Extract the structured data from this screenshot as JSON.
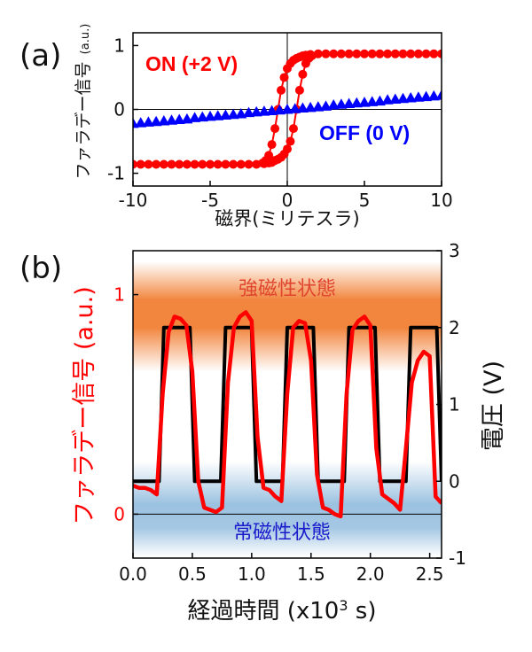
{
  "chart_data": [
    {
      "panel_label": "(a)",
      "type": "scatter",
      "xlabel": "磁界(ミリテスラ)",
      "ylabel": "ファラデー信号",
      "ylabel_unit": "(a.u.)",
      "xlim": [
        -10,
        10
      ],
      "ylim": [
        -1.2,
        1.2
      ],
      "x_ticks": [
        -10,
        -5,
        0,
        5,
        10
      ],
      "y_ticks": [
        -1,
        0,
        1
      ],
      "grid": false,
      "reference_lines": {
        "x": 0,
        "y": 0
      },
      "series": [
        {
          "name": "ON (+2 V)",
          "color": "#ff0000",
          "marker": "circle",
          "sweep_up": {
            "x": [
              -10,
              -9.5,
              -9,
              -8.5,
              -8,
              -7.5,
              -7,
              -6.5,
              -6,
              -5.5,
              -5,
              -4.5,
              -4,
              -3.5,
              -3,
              -2.5,
              -2,
              -1.5,
              -1.2,
              -1.0,
              -0.8,
              -0.6,
              -0.4,
              -0.2,
              0,
              0.2,
              0.4,
              0.6,
              0.8,
              1.0,
              1.2,
              1.4,
              1.6
            ],
            "y": [
              -0.86,
              -0.86,
              -0.86,
              -0.86,
              -0.86,
              -0.86,
              -0.86,
              -0.86,
              -0.86,
              -0.86,
              -0.86,
              -0.86,
              -0.86,
              -0.86,
              -0.86,
              -0.86,
              -0.86,
              -0.85,
              -0.84,
              -0.83,
              -0.8,
              -0.78,
              -0.75,
              -0.7,
              -0.62,
              -0.5,
              -0.3,
              0,
              0.3,
              0.55,
              0.72,
              0.8,
              0.84
            ]
          },
          "sweep_down": {
            "x": [
              10,
              9.5,
              9,
              8.5,
              8,
              7.5,
              7,
              6.5,
              6,
              5.5,
              5,
              4.5,
              4,
              3.5,
              3,
              2.5,
              2,
              1.5,
              1.2,
              1.0,
              0.8,
              0.6,
              0.4,
              0.2,
              0,
              -0.2,
              -0.4,
              -0.6,
              -0.8,
              -1.0,
              -1.2,
              -1.4,
              -1.6
            ],
            "y": [
              0.87,
              0.87,
              0.87,
              0.87,
              0.87,
              0.87,
              0.87,
              0.87,
              0.87,
              0.87,
              0.87,
              0.87,
              0.87,
              0.87,
              0.87,
              0.87,
              0.87,
              0.86,
              0.85,
              0.84,
              0.82,
              0.8,
              0.77,
              0.72,
              0.64,
              0.5,
              0.3,
              0,
              -0.3,
              -0.55,
              -0.72,
              -0.8,
              -0.84
            ]
          }
        },
        {
          "name": "OFF (0 V)",
          "color": "#0000ff",
          "marker": "triangle",
          "x": [
            -10,
            -9.5,
            -9,
            -8.5,
            -8,
            -7.5,
            -7,
            -6.5,
            -6,
            -5.5,
            -5,
            -4.5,
            -4,
            -3.5,
            -3,
            -2.5,
            -2,
            -1.5,
            -1,
            -0.5,
            0,
            0.5,
            1,
            1.5,
            2,
            2.5,
            3,
            3.5,
            4,
            4.5,
            5,
            5.5,
            6,
            6.5,
            7,
            7.5,
            8,
            8.5,
            9,
            9.5,
            10
          ],
          "y": [
            -0.22,
            -0.21,
            -0.2,
            -0.19,
            -0.18,
            -0.17,
            -0.16,
            -0.15,
            -0.13,
            -0.12,
            -0.11,
            -0.1,
            -0.09,
            -0.08,
            -0.07,
            -0.05,
            -0.04,
            -0.03,
            -0.02,
            -0.01,
            0,
            0.01,
            0.02,
            0.03,
            0.04,
            0.05,
            0.07,
            0.08,
            0.09,
            0.1,
            0.11,
            0.12,
            0.13,
            0.15,
            0.16,
            0.17,
            0.18,
            0.19,
            0.2,
            0.21,
            0.22
          ]
        }
      ]
    },
    {
      "panel_label": "(b)",
      "type": "line",
      "xlabel": "経過時間 (x10",
      "xlabel_exp": "3",
      "xlabel_tail": " s)",
      "ylabel": "ファラデー信号 (a.u.)",
      "ylabel_right": "電圧 (V)",
      "xlim": [
        0,
        2.6
      ],
      "ylim": [
        -0.2,
        1.2
      ],
      "ylim_right": [
        -1,
        3
      ],
      "x_ticks": [
        "0.0",
        "0.5",
        "1.0",
        "1.5",
        "2.0",
        "2.5"
      ],
      "y_ticks": [
        0,
        1
      ],
      "y_ticks_right": [
        -1,
        0,
        1,
        2,
        3
      ],
      "grid": false,
      "bands": [
        {
          "label": "強磁性状態",
          "color": "#f07828",
          "y_center": 0.9
        },
        {
          "label": "常磁性状態",
          "color": "#4a90c8",
          "y_center": 0
        }
      ],
      "series": [
        {
          "name": "電圧",
          "axis": "right",
          "color": "#000000",
          "x": [
            0,
            0.22,
            0.26,
            0.48,
            0.52,
            0.74,
            0.78,
            1.0,
            1.04,
            1.26,
            1.3,
            1.52,
            1.56,
            1.78,
            1.82,
            2.04,
            2.08,
            2.3,
            2.34,
            2.56,
            2.6
          ],
          "y": [
            0,
            0,
            2,
            2,
            0,
            0,
            2,
            2,
            0,
            0,
            2,
            2,
            0,
            0,
            2,
            2,
            0,
            0,
            2,
            2,
            0
          ]
        },
        {
          "name": "ファラデー信号",
          "axis": "left",
          "color": "#ff0000",
          "x": [
            0,
            0.05,
            0.1,
            0.15,
            0.2,
            0.25,
            0.3,
            0.35,
            0.4,
            0.45,
            0.5,
            0.55,
            0.6,
            0.65,
            0.7,
            0.75,
            0.8,
            0.85,
            0.9,
            0.95,
            1.0,
            1.05,
            1.1,
            1.15,
            1.2,
            1.25,
            1.3,
            1.35,
            1.4,
            1.45,
            1.5,
            1.55,
            1.6,
            1.65,
            1.7,
            1.75,
            1.8,
            1.85,
            1.9,
            1.95,
            2.0,
            2.05,
            2.1,
            2.15,
            2.2,
            2.25,
            2.3,
            2.35,
            2.4,
            2.45,
            2.5,
            2.55,
            2.6
          ],
          "y": [
            0.13,
            0.12,
            0.12,
            0.11,
            0.09,
            0.55,
            0.83,
            0.9,
            0.89,
            0.86,
            0.65,
            0.15,
            0.03,
            0.02,
            0.01,
            0.03,
            0.6,
            0.85,
            0.9,
            0.92,
            0.88,
            0.35,
            0.12,
            0.11,
            0.08,
            0.06,
            0.55,
            0.85,
            0.88,
            0.87,
            0.7,
            0.18,
            0.03,
            0.02,
            0.0,
            -0.01,
            0.55,
            0.84,
            0.88,
            0.9,
            0.86,
            0.3,
            0.09,
            0.07,
            0.05,
            0.02,
            0.3,
            0.6,
            0.7,
            0.74,
            0.72,
            0.08,
            0.05
          ]
        }
      ]
    }
  ]
}
